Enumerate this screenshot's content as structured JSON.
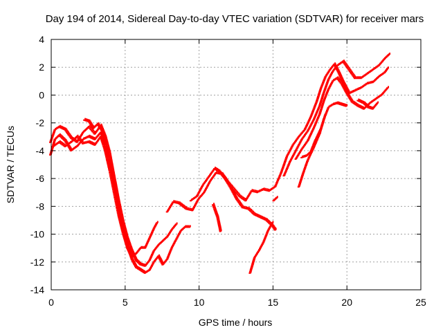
{
  "chart_data": {
    "type": "scatter",
    "title": "Day 194 of 2014, Sidereal Day-to-day VTEC variation (SDTVAR) for receiver mars",
    "xlabel": "GPS time / hours",
    "ylabel": "SDTVAR / TECUs",
    "xlim": [
      0,
      25
    ],
    "ylim": [
      -14,
      4
    ],
    "xticks": [
      "0",
      "5",
      "10",
      "15",
      "20",
      "25"
    ],
    "yticks": [
      "-14",
      "-12",
      "-10",
      "-8",
      "-6",
      "-4",
      "-2",
      "0",
      "2",
      "4"
    ],
    "grid": true,
    "marker": "plus",
    "color": "#ff0000",
    "series": [
      {
        "traces": [
          [
            [
              0.0,
              -4.3
            ],
            [
              0.3,
              -3.2
            ],
            [
              0.6,
              -2.9
            ],
            [
              1.0,
              -3.3
            ],
            [
              1.4,
              -4.0
            ],
            [
              1.8,
              -3.7
            ],
            [
              2.2,
              -3.2
            ],
            [
              2.6,
              -3.0
            ],
            [
              3.0,
              -3.2
            ],
            [
              3.4,
              -2.7
            ],
            [
              3.7,
              -3.5
            ],
            [
              4.0,
              -4.8
            ],
            [
              4.3,
              -6.5
            ],
            [
              4.6,
              -8.2
            ],
            [
              4.9,
              -9.6
            ],
            [
              5.2,
              -10.8
            ],
            [
              5.5,
              -11.8
            ],
            [
              5.8,
              -12.4
            ],
            [
              6.1,
              -12.6
            ],
            [
              6.4,
              -12.8
            ],
            [
              6.7,
              -12.6
            ],
            [
              7.0,
              -12.0
            ],
            [
              7.3,
              -11.6
            ],
            [
              7.6,
              -12.2
            ],
            [
              7.9,
              -11.8
            ],
            [
              8.2,
              -11.0
            ],
            [
              8.5,
              -10.4
            ],
            [
              8.8,
              -9.8
            ],
            [
              9.1,
              -9.5
            ],
            [
              9.4,
              -9.5
            ]
          ],
          [
            [
              0.0,
              -3.4
            ],
            [
              0.3,
              -2.5
            ],
            [
              0.6,
              -2.3
            ],
            [
              1.0,
              -2.5
            ],
            [
              1.4,
              -3.1
            ],
            [
              1.8,
              -3.4
            ],
            [
              2.2,
              -2.7
            ],
            [
              2.6,
              -2.3
            ],
            [
              3.0,
              -2.8
            ],
            [
              3.4,
              -2.2
            ],
            [
              3.7,
              -3.0
            ],
            [
              4.0,
              -4.2
            ],
            [
              4.3,
              -5.9
            ],
            [
              4.6,
              -7.6
            ],
            [
              4.9,
              -9.1
            ],
            [
              5.2,
              -10.3
            ],
            [
              5.5,
              -11.2
            ],
            [
              5.8,
              -11.9
            ],
            [
              6.1,
              -12.2
            ],
            [
              6.4,
              -12.3
            ],
            [
              6.7,
              -11.9
            ],
            [
              7.0,
              -11.2
            ],
            [
              7.3,
              -10.8
            ],
            [
              7.6,
              -10.5
            ],
            [
              7.9,
              -10.2
            ],
            [
              8.2,
              -9.7
            ],
            [
              8.5,
              -9.3
            ]
          ],
          [
            [
              0.2,
              -3.7
            ],
            [
              0.6,
              -3.4
            ],
            [
              1.0,
              -3.7
            ],
            [
              1.4,
              -3.4
            ],
            [
              1.8,
              -3.0
            ],
            [
              2.2,
              -3.5
            ],
            [
              2.6,
              -3.4
            ],
            [
              3.0,
              -3.6
            ],
            [
              3.4,
              -3.0
            ],
            [
              3.7,
              -4.0
            ],
            [
              4.0,
              -5.4
            ],
            [
              4.3,
              -7.0
            ],
            [
              4.6,
              -8.6
            ],
            [
              4.9,
              -9.9
            ],
            [
              5.2,
              -11.0
            ],
            [
              5.5,
              -11.7
            ],
            [
              5.8,
              -11.4
            ],
            [
              6.1,
              -11.0
            ],
            [
              6.4,
              -11.0
            ],
            [
              6.7,
              -10.3
            ],
            [
              7.0,
              -9.6
            ],
            [
              7.2,
              -9.2
            ]
          ],
          [
            [
              2.3,
              -1.8
            ],
            [
              2.6,
              -1.9
            ],
            [
              2.9,
              -2.4
            ],
            [
              3.2,
              -2.1
            ],
            [
              3.5,
              -2.6
            ]
          ],
          [
            [
              7.9,
              -8.4
            ],
            [
              8.3,
              -7.7
            ],
            [
              8.7,
              -7.8
            ],
            [
              9.2,
              -8.2
            ],
            [
              9.6,
              -8.3
            ],
            [
              10.0,
              -7.5
            ],
            [
              10.4,
              -7.0
            ],
            [
              10.8,
              -6.2
            ],
            [
              11.2,
              -5.6
            ],
            [
              11.6,
              -5.7
            ],
            [
              12.0,
              -6.3
            ],
            [
              12.4,
              -6.8
            ],
            [
              12.8,
              -7.3
            ],
            [
              13.2,
              -7.6
            ],
            [
              13.6,
              -6.9
            ],
            [
              14.0,
              -7.0
            ],
            [
              14.4,
              -6.8
            ],
            [
              14.8,
              -6.9
            ],
            [
              15.2,
              -6.6
            ],
            [
              15.6,
              -5.6
            ],
            [
              16.0,
              -4.4
            ],
            [
              16.4,
              -3.6
            ],
            [
              16.8,
              -3.0
            ],
            [
              17.2,
              -2.5
            ],
            [
              17.6,
              -1.6
            ],
            [
              18.0,
              -0.5
            ],
            [
              18.3,
              0.5
            ],
            [
              18.6,
              1.3
            ],
            [
              18.9,
              1.8
            ],
            [
              19.2,
              2.2
            ],
            [
              19.5,
              1.6
            ],
            [
              19.8,
              0.9
            ],
            [
              20.2,
              0.1
            ],
            [
              20.6,
              0.3
            ],
            [
              21.0,
              0.5
            ],
            [
              21.4,
              0.8
            ],
            [
              21.8,
              0.9
            ],
            [
              22.2,
              1.3
            ],
            [
              22.6,
              1.6
            ],
            [
              22.8,
              1.9
            ]
          ],
          [
            [
              9.5,
              -7.6
            ],
            [
              9.9,
              -7.3
            ],
            [
              10.3,
              -6.5
            ],
            [
              10.7,
              -5.9
            ],
            [
              11.1,
              -5.3
            ],
            [
              11.4,
              -5.5
            ],
            [
              11.8,
              -6.0
            ],
            [
              12.2,
              -6.7
            ],
            [
              12.6,
              -7.5
            ],
            [
              13.0,
              -8.1
            ],
            [
              13.4,
              -8.2
            ],
            [
              13.8,
              -8.6
            ],
            [
              14.2,
              -8.8
            ],
            [
              14.6,
              -9.0
            ],
            [
              15.0,
              -9.4
            ],
            [
              15.2,
              -9.7
            ]
          ],
          [
            [
              11.0,
              -7.9
            ],
            [
              11.3,
              -8.8
            ],
            [
              11.5,
              -9.8
            ]
          ],
          [
            [
              13.5,
              -12.8
            ],
            [
              13.8,
              -11.7
            ],
            [
              14.1,
              -11.2
            ],
            [
              14.4,
              -10.6
            ],
            [
              14.7,
              -9.8
            ],
            [
              15.0,
              -9.2
            ]
          ],
          [
            [
              15.1,
              -7.6
            ],
            [
              15.3,
              -7.4
            ]
          ],
          [
            [
              15.8,
              -5.8
            ],
            [
              16.2,
              -4.8
            ],
            [
              16.6,
              -4.0
            ],
            [
              17.0,
              -3.2
            ],
            [
              17.4,
              -2.6
            ],
            [
              17.8,
              -1.8
            ],
            [
              18.2,
              -0.8
            ],
            [
              18.5,
              0.2
            ],
            [
              18.8,
              1.1
            ],
            [
              19.1,
              1.7
            ],
            [
              19.4,
              2.1
            ],
            [
              19.8,
              2.4
            ],
            [
              20.2,
              1.8
            ],
            [
              20.6,
              1.2
            ],
            [
              21.0,
              1.2
            ],
            [
              21.4,
              1.5
            ],
            [
              21.8,
              1.8
            ],
            [
              22.2,
              2.1
            ],
            [
              22.6,
              2.6
            ],
            [
              22.9,
              2.9
            ]
          ],
          [
            [
              16.6,
              -4.6
            ],
            [
              17.0,
              -3.9
            ],
            [
              17.4,
              -3.3
            ],
            [
              17.8,
              -2.4
            ],
            [
              18.2,
              -1.4
            ],
            [
              18.5,
              -0.4
            ],
            [
              18.8,
              0.4
            ],
            [
              19.1,
              1.0
            ],
            [
              19.4,
              1.2
            ],
            [
              19.7,
              0.8
            ],
            [
              20.0,
              0.2
            ],
            [
              20.4,
              -0.5
            ],
            [
              20.8,
              -0.8
            ],
            [
              21.2,
              -1.0
            ],
            [
              21.6,
              -0.6
            ],
            [
              22.0,
              -0.3
            ],
            [
              22.4,
              0.0
            ],
            [
              22.8,
              0.5
            ]
          ],
          [
            [
              16.8,
              -6.6
            ],
            [
              17.1,
              -5.6
            ],
            [
              17.4,
              -4.7
            ],
            [
              17.8,
              -3.8
            ],
            [
              18.2,
              -2.8
            ],
            [
              18.5,
              -1.7
            ],
            [
              18.8,
              -0.9
            ],
            [
              19.1,
              -0.7
            ],
            [
              19.4,
              -0.6
            ],
            [
              19.7,
              -0.7
            ],
            [
              20.0,
              -0.8
            ]
          ],
          [
            [
              17.0,
              -4.5
            ],
            [
              17.3,
              -4.4
            ],
            [
              17.6,
              -4.1
            ],
            [
              17.9,
              -3.3
            ],
            [
              18.3,
              -2.4
            ],
            [
              18.6,
              -1.4
            ]
          ],
          [
            [
              20.8,
              -0.4
            ],
            [
              21.2,
              -0.6
            ],
            [
              21.5,
              -0.9
            ],
            [
              21.8,
              -1.0
            ],
            [
              22.1,
              -0.6
            ]
          ]
        ]
      }
    ]
  }
}
